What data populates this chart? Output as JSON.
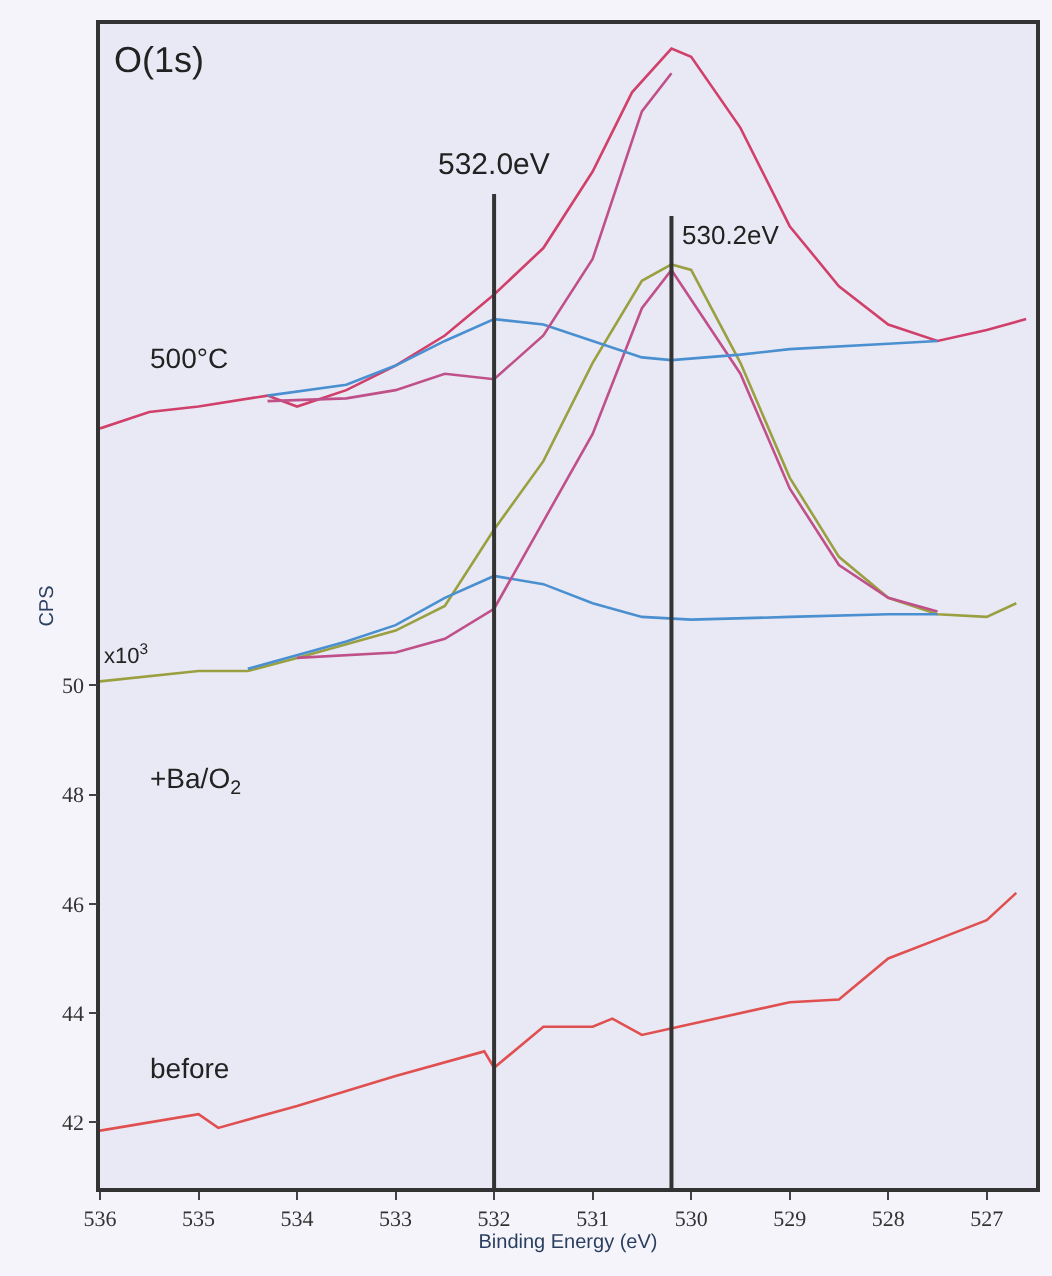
{
  "chart_data": {
    "type": "line",
    "xlabel": "Binding Energy (eV)",
    "ylabel": "CPS",
    "xlim": [
      536,
      526.5
    ],
    "xticks": [
      536,
      535,
      534,
      533,
      532,
      531,
      530,
      529,
      528,
      527
    ],
    "ylim": [
      40.8,
      62.1
    ],
    "yticks": [
      42,
      44,
      46,
      48,
      50
    ],
    "grid": false,
    "marker": "none",
    "line_style": "solid",
    "annotations": [
      "O(1s)",
      "500°C",
      "x10$^{3}$",
      "+Ba/O$_{2}$",
      "before"
    ],
    "ref_lines": [
      {
        "axis": "x",
        "value": 532.0,
        "label": "532.0eV",
        "color": "#333333"
      },
      {
        "axis": "x",
        "value": 530.2,
        "label": "530.2eV",
        "color": "#333333"
      }
    ],
    "series": [
      {
        "color": "#e05050",
        "x": [
          536,
          535,
          534.8,
          534,
          533,
          532.1,
          532,
          531.5,
          531,
          530.8,
          530.5,
          530,
          529,
          528.5,
          528,
          527.5,
          527,
          526.7
        ],
        "values": [
          41.85,
          42.15,
          41.9,
          42.3,
          42.85,
          43.3,
          43.0,
          43.75,
          43.75,
          43.9,
          43.6,
          43.8,
          44.2,
          44.25,
          45.0,
          45.35,
          45.7,
          46.2
        ]
      },
      {
        "color": "#9aa040",
        "x": [
          536,
          535,
          534.5,
          534,
          533,
          532.5,
          532,
          531.5,
          531,
          530.5,
          530.2,
          530,
          529.5,
          529,
          528.5,
          528,
          527.5,
          527,
          526.7
        ],
        "values": [
          50.07,
          50.26,
          50.26,
          50.5,
          51.0,
          51.45,
          52.85,
          54.1,
          55.9,
          57.4,
          57.7,
          57.6,
          55.9,
          53.8,
          52.35,
          51.6,
          51.3,
          51.25,
          51.5
        ]
      },
      {
        "color": "#4a90d0",
        "x": [
          534.5,
          533.5,
          533,
          532.5,
          532,
          531.5,
          531,
          530.5,
          530,
          529,
          528,
          527.5
        ],
        "values": [
          50.3,
          50.8,
          51.1,
          51.6,
          52.0,
          51.85,
          51.5,
          51.25,
          51.2,
          51.25,
          51.3,
          51.3
        ]
      },
      {
        "color": "#c0508a",
        "x": [
          534,
          533,
          532.5,
          532,
          531.5,
          531,
          530.5,
          530.2,
          529.5,
          529,
          528.5,
          528,
          527.5
        ],
        "values": [
          50.5,
          50.6,
          50.85,
          51.4,
          53.0,
          54.6,
          56.9,
          57.6,
          55.7,
          53.6,
          52.2,
          51.6,
          51.35
        ]
      },
      {
        "color": "#d0406a",
        "x": [
          536,
          535.5,
          535,
          534.3,
          534,
          533.5,
          533,
          532.5,
          532,
          531.5,
          531,
          530.6,
          530.2,
          530,
          529.5,
          529,
          528.5,
          528,
          527.5,
          527,
          526.6
        ],
        "values": [
          54.7,
          55.0,
          55.1,
          55.3,
          55.1,
          55.4,
          55.85,
          56.4,
          57.15,
          58.0,
          59.4,
          60.85,
          61.65,
          61.5,
          60.2,
          58.4,
          57.3,
          56.6,
          56.3,
          56.5,
          56.7
        ]
      },
      {
        "color": "#4a90d0",
        "x": [
          534.3,
          533.5,
          533,
          532.5,
          532,
          531.5,
          531,
          530.5,
          530.2,
          529.5,
          529,
          528,
          527.5
        ],
        "values": [
          55.3,
          55.5,
          55.85,
          56.3,
          56.7,
          56.6,
          56.3,
          56.0,
          55.95,
          56.05,
          56.15,
          56.25,
          56.3
        ]
      },
      {
        "color": "#c0508a",
        "x": [
          534.3,
          533.5,
          533,
          532.5,
          532,
          531.5,
          531,
          530.5,
          530.2
        ],
        "values": [
          55.2,
          55.25,
          55.4,
          55.7,
          55.6,
          56.4,
          57.8,
          60.5,
          61.2
        ]
      }
    ]
  }
}
